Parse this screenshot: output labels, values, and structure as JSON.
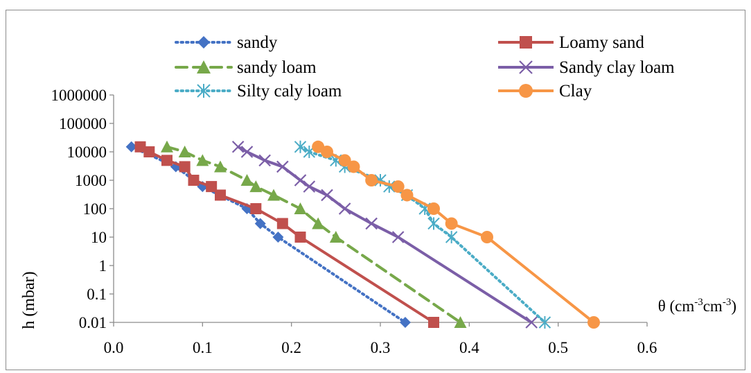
{
  "chart_data": {
    "type": "line",
    "title": "",
    "xlabel": "θ (cm⁻³cm⁻³)",
    "ylabel": "h (mbar)",
    "x_range": [
      0,
      0.6
    ],
    "y_scale": "log",
    "y_range": [
      0.01,
      1000000
    ],
    "x_ticks": [
      0,
      0.1,
      0.2,
      0.3,
      0.4,
      0.5,
      0.6
    ],
    "x_tick_labels": [
      "0.0",
      "0.1",
      "0.2",
      "0.3",
      "0.4",
      "0.5",
      "0.6"
    ],
    "y_ticks": [
      0.01,
      0.1,
      1,
      10,
      100,
      1000,
      10000,
      100000,
      1000000
    ],
    "y_tick_labels": [
      "0.01",
      "0.1",
      "1",
      "10",
      "100",
      "1000",
      "10000",
      "100000",
      "1000000"
    ],
    "grid": false,
    "legend_position": "top",
    "series": [
      {
        "name": "sandy",
        "color": "#4472c4",
        "line_style": "dotted",
        "marker": "diamond",
        "points": [
          [
            0.02,
            15000
          ],
          [
            0.07,
            3000
          ],
          [
            0.1,
            600
          ],
          [
            0.15,
            100
          ],
          [
            0.165,
            30
          ],
          [
            0.185,
            10
          ],
          [
            0.328,
            0.01
          ]
        ]
      },
      {
        "name": "Loamy sand",
        "color": "#c0504d",
        "line_style": "solid",
        "marker": "square",
        "points": [
          [
            0.03,
            15000
          ],
          [
            0.04,
            10000
          ],
          [
            0.06,
            5000
          ],
          [
            0.08,
            3000
          ],
          [
            0.09,
            1000
          ],
          [
            0.11,
            600
          ],
          [
            0.12,
            300
          ],
          [
            0.16,
            100
          ],
          [
            0.19,
            30
          ],
          [
            0.21,
            10
          ],
          [
            0.36,
            0.01
          ]
        ]
      },
      {
        "name": "sandy loam",
        "color": "#77a84a",
        "line_style": "dashed",
        "marker": "triangle",
        "points": [
          [
            0.06,
            15000
          ],
          [
            0.08,
            10000
          ],
          [
            0.1,
            5000
          ],
          [
            0.12,
            3000
          ],
          [
            0.15,
            1000
          ],
          [
            0.16,
            600
          ],
          [
            0.18,
            300
          ],
          [
            0.21,
            100
          ],
          [
            0.23,
            30
          ],
          [
            0.25,
            10
          ],
          [
            0.39,
            0.01
          ]
        ]
      },
      {
        "name": "Sandy clay loam",
        "color": "#7b5ea7",
        "line_style": "solid",
        "marker": "x",
        "points": [
          [
            0.14,
            15000
          ],
          [
            0.15,
            10000
          ],
          [
            0.17,
            5000
          ],
          [
            0.19,
            3000
          ],
          [
            0.21,
            1000
          ],
          [
            0.22,
            600
          ],
          [
            0.24,
            300
          ],
          [
            0.26,
            100
          ],
          [
            0.29,
            30
          ],
          [
            0.32,
            10
          ],
          [
            0.47,
            0.01
          ]
        ]
      },
      {
        "name": "Silty caly loam",
        "color": "#4bacc6",
        "line_style": "dotted",
        "marker": "asterisk",
        "points": [
          [
            0.21,
            15000
          ],
          [
            0.22,
            10000
          ],
          [
            0.25,
            5000
          ],
          [
            0.26,
            3000
          ],
          [
            0.3,
            1000
          ],
          [
            0.31,
            600
          ],
          [
            0.33,
            300
          ],
          [
            0.35,
            100
          ],
          [
            0.36,
            30
          ],
          [
            0.38,
            10
          ],
          [
            0.485,
            0.01
          ]
        ]
      },
      {
        "name": "Clay",
        "color": "#f79646",
        "line_style": "solid",
        "marker": "circle",
        "points": [
          [
            0.23,
            15000
          ],
          [
            0.24,
            10000
          ],
          [
            0.26,
            5000
          ],
          [
            0.27,
            3000
          ],
          [
            0.29,
            1000
          ],
          [
            0.32,
            600
          ],
          [
            0.33,
            300
          ],
          [
            0.36,
            100
          ],
          [
            0.38,
            30
          ],
          [
            0.42,
            10
          ],
          [
            0.54,
            0.01
          ]
        ]
      }
    ]
  }
}
